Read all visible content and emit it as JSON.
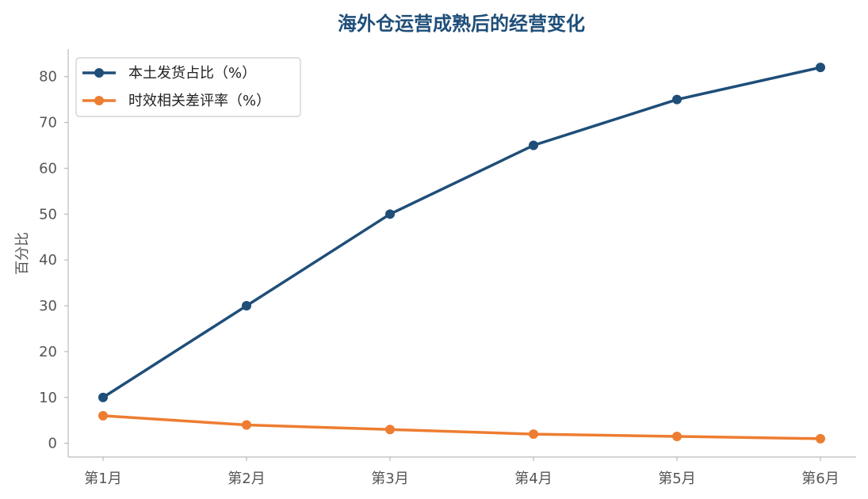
{
  "chart_data": {
    "type": "line",
    "title": "海外仓运营成熟后的经营变化",
    "xlabel": "",
    "ylabel": "百分比",
    "categories": [
      "第1月",
      "第2月",
      "第3月",
      "第4月",
      "第5月",
      "第6月"
    ],
    "ylim": [
      -3,
      86
    ],
    "yticks": [
      0,
      10,
      20,
      30,
      40,
      50,
      60,
      70,
      80
    ],
    "grid": false,
    "legend_position": "top-left",
    "series": [
      {
        "name": "本土发货占比（%）",
        "color": "#1f4e79",
        "values": [
          10,
          30,
          50,
          65,
          75,
          82
        ]
      },
      {
        "name": "时效相关差评率（%）",
        "color": "#ed7d31",
        "values": [
          6,
          4,
          3,
          2,
          1.5,
          1
        ]
      }
    ]
  },
  "colors": {
    "title": "#1f4e79",
    "axis": "#bbbbbb",
    "text": "#555555"
  }
}
